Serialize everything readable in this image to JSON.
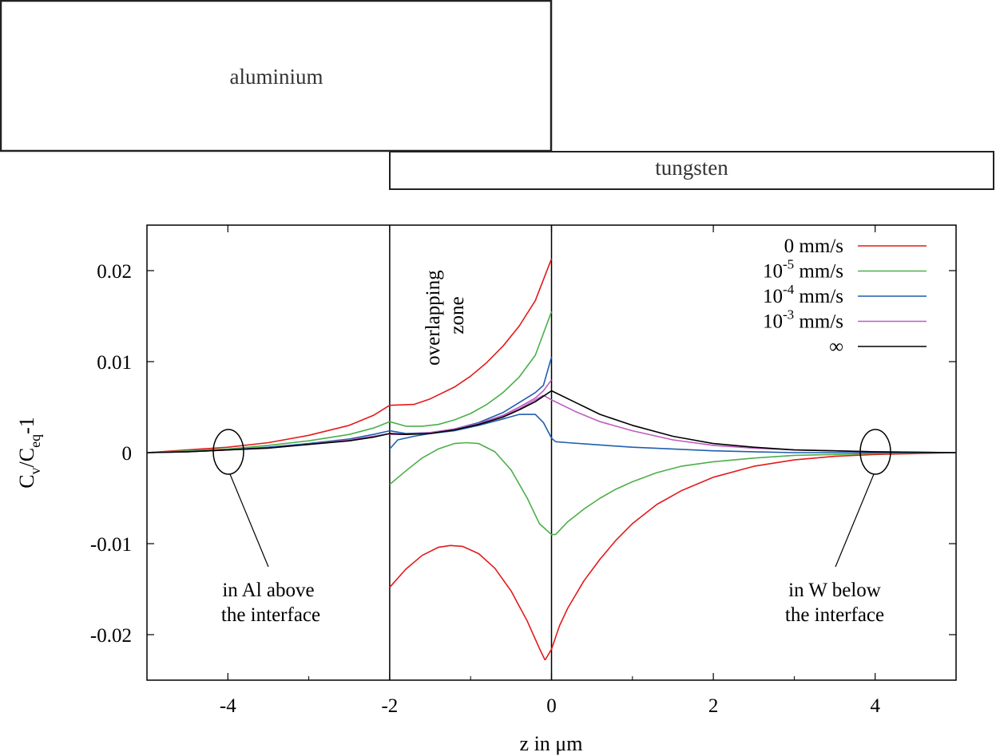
{
  "materials": {
    "top": "aluminium",
    "bottom": "tungsten"
  },
  "zone_label": [
    "overlapping",
    "zone"
  ],
  "annotations": {
    "left": [
      "in Al above",
      "the interface"
    ],
    "right": [
      "in W below",
      "the interface"
    ]
  },
  "chart_data": {
    "type": "line",
    "title": "",
    "xlabel": "z in μm",
    "ylabel": "C_v/C_eq-1",
    "xlim": [
      -5,
      5
    ],
    "ylim": [
      -0.025,
      0.025
    ],
    "xticks": [
      -4,
      -2,
      0,
      2,
      4
    ],
    "yticks": [
      -0.02,
      -0.01,
      0,
      0.01,
      0.02
    ],
    "xtick_labels": [
      "-4",
      "-2",
      "0",
      "2",
      "4"
    ],
    "ytick_labels": [
      "-0.02",
      "-0.01",
      "0",
      "0.01",
      "0.02"
    ],
    "vertical_lines": [
      -2,
      0
    ],
    "grid": false,
    "legend_position": "top-right",
    "series": [
      {
        "name": "0 mm/s",
        "base": "0",
        "exp": "",
        "unit": " mm/s",
        "color": "#e41a1c",
        "segments": [
          {
            "x": [
              -5,
              -4.5,
              -4,
              -3.5,
              -3,
              -2.5,
              -2.2,
              -2.0
            ],
            "y": [
              0,
              0.0003,
              0.0006,
              0.0011,
              0.0019,
              0.003,
              0.0041,
              0.0052
            ]
          },
          {
            "x": [
              -2.0,
              -1.7,
              -1.5,
              -1.2,
              -1.0,
              -0.8,
              -0.6,
              -0.4,
              -0.2,
              0.0
            ],
            "y": [
              0.0052,
              0.0053,
              0.0059,
              0.0072,
              0.0084,
              0.0099,
              0.0117,
              0.0139,
              0.0167,
              0.0213
            ]
          },
          {
            "x": [
              -2.0,
              -1.8,
              -1.6,
              -1.4,
              -1.25,
              -1.1,
              -0.9,
              -0.7,
              -0.5,
              -0.3,
              -0.15,
              -0.08
            ],
            "y": [
              -0.0148,
              -0.0128,
              -0.0113,
              -0.0104,
              -0.0102,
              -0.0103,
              -0.0111,
              -0.0127,
              -0.0152,
              -0.0185,
              -0.0215,
              -0.0228
            ]
          },
          {
            "x": [
              -0.08,
              0.0,
              0.1,
              0.2,
              0.4,
              0.6,
              0.8,
              1.0,
              1.3,
              1.6,
              2.0,
              2.5,
              3.0,
              3.5,
              4.0,
              4.5,
              5.0
            ],
            "y": [
              -0.0228,
              -0.0216,
              -0.019,
              -0.0171,
              -0.0141,
              -0.0117,
              -0.0096,
              -0.0078,
              -0.0057,
              -0.0042,
              -0.0027,
              -0.0015,
              -0.0008,
              -0.0004,
              -0.0002,
              -0.0001,
              0
            ]
          }
        ]
      },
      {
        "name": "10^-5 mm/s",
        "base": "10",
        "exp": "-5",
        "unit": " mm/s",
        "color": "#4daf4a",
        "segments": [
          {
            "x": [
              -5,
              -4.5,
              -4,
              -3.5,
              -3,
              -2.5,
              -2.2,
              -2.0
            ],
            "y": [
              0,
              0.0002,
              0.0004,
              0.0008,
              0.0013,
              0.002,
              0.0027,
              0.0034
            ]
          },
          {
            "x": [
              -2.0,
              -1.8,
              -1.6,
              -1.4,
              -1.2,
              -1.0,
              -0.8,
              -0.6,
              -0.4,
              -0.2,
              0.0
            ],
            "y": [
              0.0034,
              0.0029,
              0.0029,
              0.0031,
              0.0036,
              0.0043,
              0.0053,
              0.0066,
              0.0083,
              0.0107,
              0.0155
            ]
          },
          {
            "x": [
              -2.0,
              -1.8,
              -1.6,
              -1.4,
              -1.2,
              -1.05,
              -0.9,
              -0.7,
              -0.5,
              -0.3,
              -0.15,
              -0.05
            ],
            "y": [
              -0.0035,
              -0.002,
              -0.0006,
              0.0004,
              0.001,
              0.0011,
              0.001,
              0.0001,
              -0.0019,
              -0.005,
              -0.0078,
              -0.0086
            ]
          },
          {
            "x": [
              -0.05,
              0.0,
              0.05,
              0.2,
              0.4,
              0.6,
              0.8,
              1.0,
              1.3,
              1.6,
              2.0,
              2.5,
              3.0,
              3.5,
              4.0,
              4.5,
              5.0
            ],
            "y": [
              -0.0086,
              -0.009,
              -0.009,
              -0.0076,
              -0.0062,
              -0.005,
              -0.004,
              -0.0032,
              -0.0022,
              -0.0015,
              -0.001,
              -0.0006,
              -0.0003,
              -0.0002,
              -0.0001,
              0,
              0
            ]
          }
        ]
      },
      {
        "name": "10^-4 mm/s",
        "base": "10",
        "exp": "-4",
        "unit": " mm/s",
        "color": "#1f5fae",
        "segments": [
          {
            "x": [
              -5,
              -4.5,
              -4,
              -3.5,
              -3,
              -2.5,
              -2.2,
              -2.0
            ],
            "y": [
              0,
              0.0001,
              0.0003,
              0.0006,
              0.001,
              0.0015,
              0.002,
              0.0024
            ]
          },
          {
            "x": [
              -2.0,
              -1.8,
              -1.5,
              -1.2,
              -0.9,
              -0.6,
              -0.4,
              -0.2,
              -0.1,
              0.0
            ],
            "y": [
              0.0024,
              0.0021,
              0.0022,
              0.0026,
              0.0033,
              0.0044,
              0.0055,
              0.0066,
              0.0074,
              0.0105
            ]
          },
          {
            "x": [
              -2.0,
              -1.9,
              -1.7,
              -1.5,
              -1.2,
              -0.9,
              -0.6,
              -0.4,
              -0.2,
              -0.1,
              0.0,
              0.05
            ],
            "y": [
              0.0004,
              0.0014,
              0.0018,
              0.0021,
              0.0024,
              0.003,
              0.0037,
              0.0042,
              0.0042,
              0.0033,
              0.0016,
              0.0012
            ]
          },
          {
            "x": [
              0.05,
              0.2,
              0.5,
              1.0,
              1.5,
              2.0,
              2.5,
              3.0,
              4.0,
              5.0
            ],
            "y": [
              0.0012,
              0.0011,
              0.0009,
              0.0006,
              0.0004,
              0.0002,
              0.0001,
              0,
              0,
              0
            ]
          }
        ]
      },
      {
        "name": "10^-3 mm/s",
        "base": "10",
        "exp": "-3",
        "unit": " mm/s",
        "color": "#c05cc0",
        "segments": [
          {
            "x": [
              -5,
              -4.5,
              -4,
              -3.5,
              -3,
              -2.5,
              -2.2,
              -2.0
            ],
            "y": [
              0,
              0.0001,
              0.0003,
              0.0005,
              0.0009,
              0.0014,
              0.0018,
              0.0021
            ]
          },
          {
            "x": [
              -2.0,
              -1.8,
              -1.5,
              -1.2,
              -0.9,
              -0.6,
              -0.4,
              -0.2,
              -0.1,
              0.0
            ],
            "y": [
              0.0021,
              0.002,
              0.0022,
              0.0026,
              0.0032,
              0.0041,
              0.005,
              0.006,
              0.0068,
              0.008
            ]
          },
          {
            "x": [
              -2.0,
              -1.8,
              -1.5,
              -1.2,
              -0.9,
              -0.6,
              -0.4,
              -0.2,
              -0.1
            ],
            "y": [
              0.002,
              0.002,
              0.0022,
              0.0026,
              0.0032,
              0.004,
              0.0048,
              0.0058,
              0.0063
            ]
          },
          {
            "x": [
              -0.1,
              0.0,
              0.3,
              0.6,
              1.0,
              1.5,
              2.0,
              2.5,
              3.0,
              4.0,
              5.0
            ],
            "y": [
              0.0063,
              0.0058,
              0.0045,
              0.0034,
              0.0024,
              0.0014,
              0.0008,
              0.0005,
              0.0003,
              0.0001,
              0
            ]
          }
        ]
      },
      {
        "name": "∞",
        "base": "∞",
        "exp": "",
        "unit": "",
        "color": "#000000",
        "segments": [
          {
            "x": [
              -5,
              -4.5,
              -4,
              -3.5,
              -3,
              -2.5,
              -2.2,
              -2.0
            ],
            "y": [
              0,
              0.0001,
              0.0003,
              0.0005,
              0.0009,
              0.0013,
              0.0017,
              0.0021
            ]
          },
          {
            "x": [
              -2.0,
              -1.8,
              -1.5,
              -1.2,
              -0.9,
              -0.6,
              -0.4,
              -0.2,
              -0.1,
              0.0
            ],
            "y": [
              0.0021,
              0.002,
              0.0021,
              0.0025,
              0.0031,
              0.0039,
              0.0047,
              0.0056,
              0.0062,
              0.0068
            ]
          },
          {
            "x": [
              0.0,
              0.3,
              0.6,
              1.0,
              1.5,
              2.0,
              2.5,
              3.0,
              3.5,
              4.0,
              5.0
            ],
            "y": [
              0.0068,
              0.0055,
              0.0042,
              0.003,
              0.0018,
              0.001,
              0.0006,
              0.0003,
              0.0002,
              0.0001,
              0
            ]
          }
        ]
      }
    ]
  }
}
